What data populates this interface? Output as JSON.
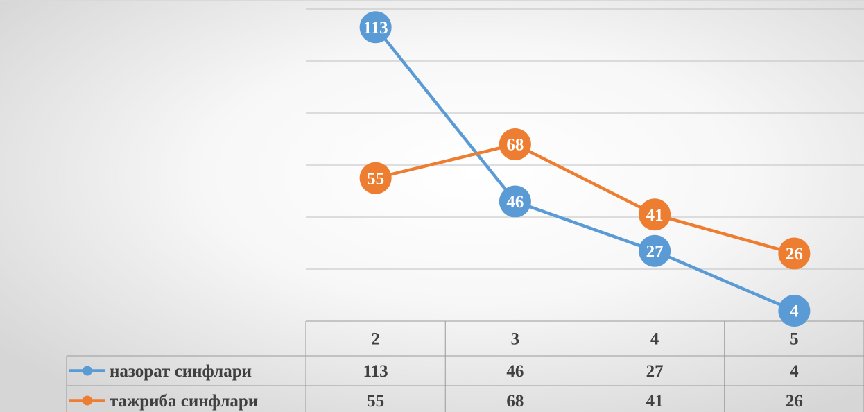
{
  "chart_data": {
    "type": "line",
    "categories": [
      "2",
      "3",
      "4",
      "5"
    ],
    "series": [
      {
        "name": "назорат синфлари",
        "values": [
          113,
          46,
          27,
          4
        ],
        "color": "#5b9bd5"
      },
      {
        "name": "тажриба синфлари",
        "values": [
          55,
          68,
          41,
          26
        ],
        "color": "#ed7d31"
      }
    ],
    "ylim": [
      0,
      120
    ],
    "grid": "horizontal",
    "data_labels": true,
    "data_table": true,
    "legend": "data-table"
  }
}
